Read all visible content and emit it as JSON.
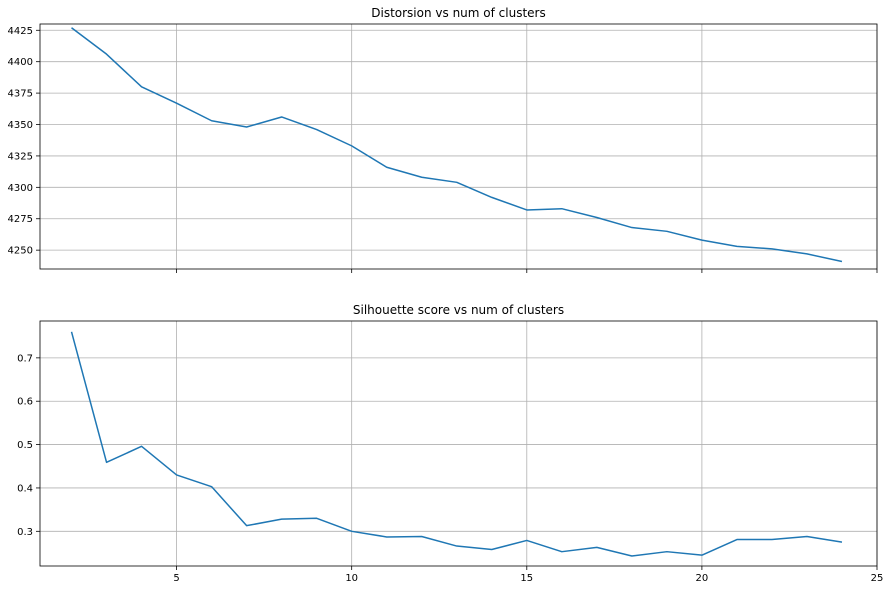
{
  "chart_data": [
    {
      "type": "line",
      "title": "Distorsion vs num of clusters",
      "xlabel": "",
      "ylabel": "",
      "xlim": [
        1.1,
        25.0
      ],
      "ylim": [
        4235,
        4430
      ],
      "grid": true,
      "xticks": [
        5,
        10,
        15,
        20,
        25
      ],
      "show_x_tick_labels": false,
      "yticks": [
        4250,
        4275,
        4300,
        4325,
        4350,
        4375,
        4400,
        4425
      ],
      "ytick_labels": [
        "4250",
        "4275",
        "4300",
        "4325",
        "4350",
        "4375",
        "4400",
        "4425"
      ],
      "series": [
        {
          "color": "#1f77b4",
          "x": [
            2,
            3,
            4,
            5,
            6,
            7,
            8,
            9,
            10,
            11,
            12,
            13,
            14,
            15,
            16,
            17,
            18,
            19,
            20,
            21,
            22,
            23,
            24
          ],
          "y": [
            4427,
            4406,
            4380,
            4367,
            4353,
            4348,
            4356,
            4346,
            4333,
            4316,
            4308,
            4304,
            4292,
            4282,
            4283,
            4276,
            4268,
            4265,
            4258,
            4253,
            4251,
            4247,
            4241
          ]
        }
      ]
    },
    {
      "type": "line",
      "title": "Silhouette score vs num of clusters",
      "xlabel": "",
      "ylabel": "",
      "xlim": [
        1.1,
        25.0
      ],
      "ylim": [
        0.22,
        0.785
      ],
      "grid": true,
      "xticks": [
        5,
        10,
        15,
        20,
        25
      ],
      "xtick_labels": [
        "5",
        "10",
        "15",
        "20",
        "25"
      ],
      "show_x_tick_labels": true,
      "yticks": [
        0.3,
        0.4,
        0.5,
        0.6,
        0.7
      ],
      "ytick_labels": [
        "0.3",
        "0.4",
        "0.5",
        "0.6",
        "0.7"
      ],
      "series": [
        {
          "color": "#1f77b4",
          "x": [
            2,
            3,
            4,
            5,
            6,
            7,
            8,
            9,
            10,
            11,
            12,
            13,
            14,
            15,
            16,
            17,
            18,
            19,
            20,
            21,
            22,
            23,
            24
          ],
          "y": [
            0.76,
            0.459,
            0.496,
            0.43,
            0.403,
            0.313,
            0.328,
            0.33,
            0.3,
            0.287,
            0.288,
            0.266,
            0.258,
            0.279,
            0.253,
            0.263,
            0.243,
            0.253,
            0.245,
            0.281,
            0.281,
            0.288,
            0.275
          ]
        }
      ]
    }
  ]
}
